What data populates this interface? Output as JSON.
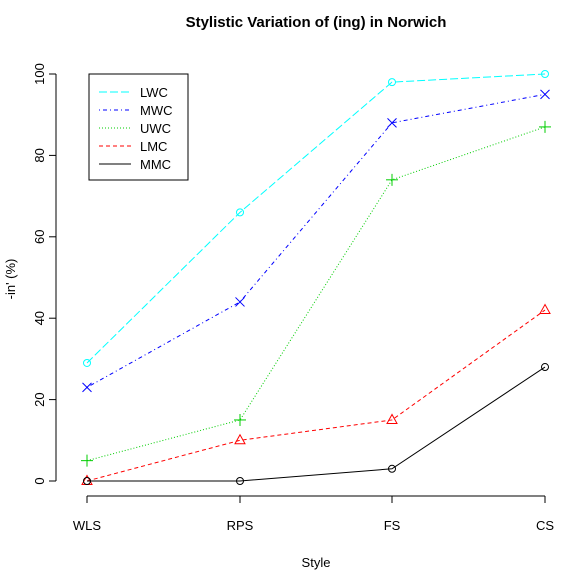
{
  "chart_data": {
    "type": "line",
    "title": "Stylistic Variation of (ing) in Norwich",
    "xlabel": "Style",
    "ylabel": "-in' (%)",
    "categories": [
      "WLS",
      "RPS",
      "FS",
      "CS"
    ],
    "ylim": [
      0,
      100
    ],
    "yticks": [
      0,
      20,
      40,
      60,
      80,
      100
    ],
    "grid": false,
    "legend": "top-left",
    "series": [
      {
        "name": "LWC",
        "values": [
          29,
          66,
          98,
          100
        ],
        "color": "#00ffff",
        "dash": "long-dash",
        "marker": "circle"
      },
      {
        "name": "MWC",
        "values": [
          23,
          44,
          88,
          95
        ],
        "color": "#0000ff",
        "dash": "dot-dash",
        "marker": "x"
      },
      {
        "name": "UWC",
        "values": [
          5,
          15,
          74,
          87
        ],
        "color": "#00cd00",
        "dash": "dotted",
        "marker": "plus"
      },
      {
        "name": "LMC",
        "values": [
          0,
          10,
          15,
          42
        ],
        "color": "#ff0000",
        "dash": "dashed",
        "marker": "triangle"
      },
      {
        "name": "MMC",
        "values": [
          0,
          0,
          3,
          28
        ],
        "color": "#000000",
        "dash": "solid",
        "marker": "circle"
      }
    ]
  }
}
